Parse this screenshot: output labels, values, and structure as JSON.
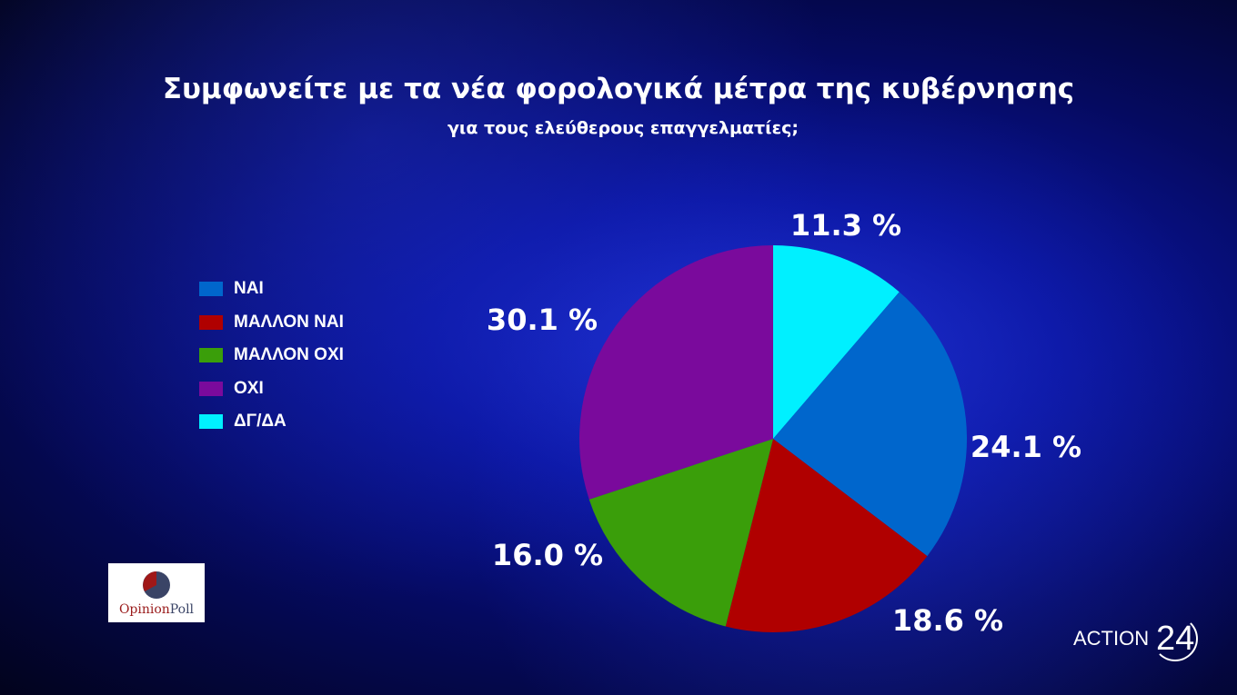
{
  "chart_data": {
    "type": "pie",
    "title": "Συμφωνείτε με τα νέα φορολογικά μέτρα της κυβέρνησης",
    "subtitle": "για τους ελεύθερους επαγγελματίες;",
    "start_angle": "12 o'clock, clockwise",
    "legend_position": "left",
    "legend": [
      "ΝΑΙ",
      "ΜΑΛΛΟΝ ΝΑΙ",
      "ΜΑΛΛΟΝ ΟΧΙ",
      "ΟΧΙ",
      "ΔΓ/ΔΑ"
    ],
    "slices": [
      {
        "name": "ΔΓ/ΔΑ",
        "value": 11.3,
        "label": "11.3 %",
        "color": "#00f0ff"
      },
      {
        "name": "ΝΑΙ",
        "value": 24.1,
        "label": "24.1 %",
        "color": "#0066cc"
      },
      {
        "name": "ΜΑΛΛΟΝ ΝΑΙ",
        "value": 18.6,
        "label": "18.6 %",
        "color": "#b00000"
      },
      {
        "name": "ΜΑΛΛΟΝ ΟΧΙ",
        "value": 16.0,
        "label": "16.0 %",
        "color": "#3a9e0a"
      },
      {
        "name": "ΟΧΙ",
        "value": 30.1,
        "label": "30.1 %",
        "color": "#7a0a9c"
      }
    ]
  },
  "logos": {
    "opinion_poll": {
      "a": "Opinion",
      "b": "Poll"
    },
    "action24": {
      "a": "ACTION",
      "b": "24"
    }
  }
}
